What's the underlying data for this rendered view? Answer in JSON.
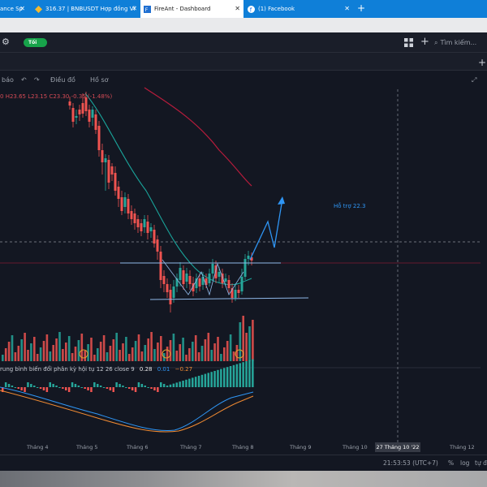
{
  "browser": {
    "tabs": [
      {
        "label": "ance Sp",
        "icon": "binance-icon",
        "active": false
      },
      {
        "label": "316.37 | BNBUSDT Hợp đồng Vĩ",
        "icon": "binance-icon",
        "active": false
      },
      {
        "label": "FireAnt - Dashboard",
        "icon": "fireant-icon",
        "active": true
      },
      {
        "label": "(1) Facebook",
        "icon": "facebook-icon",
        "active": false
      }
    ]
  },
  "app": {
    "toggle_label": "Tối",
    "search_placeholder": "Tìm kiếm...",
    "toolbar": {
      "alert_label": "báo",
      "indicator_label": "Điều đồ",
      "profile_label": "Hồ sơ"
    }
  },
  "chart": {
    "legend": {
      "open": "0",
      "high": "H23.65",
      "low": "L23.15",
      "close": "C23.30",
      "change": "-0.35 (-1.48%)"
    },
    "annotation": "Hỗ trợ 22.3",
    "macd_label": "rung bình biến đổi phân kỳ hội tụ 12 26 close 9",
    "macd_values": {
      "v1": "0.28",
      "v2": "0.01",
      "v3": "−0.27"
    },
    "x_axis": [
      "Tháng 4",
      "Tháng 5",
      "Tháng 6",
      "Tháng 7",
      "Tháng 8",
      "Tháng 9",
      "Tháng 10",
      "Tháng 12"
    ],
    "crosshair_x_label": "27 Tháng 10 '22",
    "clock": "21:53:53 (UTC+7)",
    "footer_links": [
      "%",
      "log",
      "tự đ"
    ]
  },
  "colors": {
    "up": "#26a69a",
    "down": "#ef5350",
    "ma_fast": "#1aa39a",
    "ma_slow": "#b71c3c",
    "annotation": "#2f96f5",
    "toggle": "#17a34a"
  }
}
